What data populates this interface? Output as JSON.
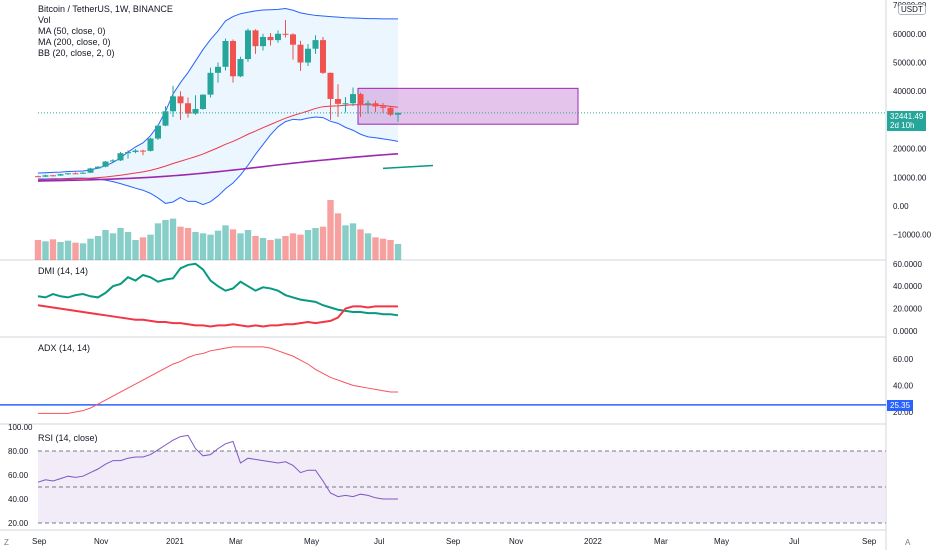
{
  "header": {
    "title": "Bitcoin / TetherUS, 1W, BINANCE",
    "indicators": [
      "Vol",
      "MA (50, close, 0)",
      "MA (200, close, 0)",
      "BB (20, close, 2, 0)"
    ],
    "currency": "USDT"
  },
  "panes": {
    "dmi_label": "DMI (14, 14)",
    "adx_label": "ADX (14, 14)",
    "rsi_label": "RSI (14, close)"
  },
  "price_axis": {
    "labels": [
      "70000.00",
      "60000.00",
      "50000.00",
      "40000.00",
      "30000.00",
      "20000.00",
      "10000.00",
      "0.00",
      "−10000.00"
    ],
    "last_price": "32441.49",
    "countdown": "2d 10h"
  },
  "dmi_axis": {
    "labels": [
      "60.0000",
      "40.0000",
      "20.0000",
      "0.0000"
    ]
  },
  "adx_axis": {
    "labels": [
      "60.00",
      "40.00",
      "20.00"
    ],
    "current": "25.35"
  },
  "rsi_axis": {
    "labels": [
      "100.00",
      "80.00",
      "60.00",
      "40.00",
      "20.00"
    ]
  },
  "time_axis": {
    "labels": [
      "Sep",
      "Nov",
      "2021",
      "Mar",
      "May",
      "Jul",
      "Sep",
      "Nov",
      "2022",
      "Mar",
      "May",
      "Jul",
      "Sep"
    ]
  },
  "corner": {
    "timezone_btn": "Z",
    "auto_btn": "A"
  },
  "colors": {
    "up": "#26a69a",
    "down": "#ef5350",
    "ma50": "#f23645",
    "ma200": "#9c27b0",
    "bb_line": "#2962ff",
    "bb_fill": "#e3f2fd",
    "adx_line": "#f7525f",
    "rsi_line": "#7e57c2",
    "rsi_band": "#ede7f6",
    "box_fill": "#ce93d8",
    "box_border": "#9c27b0",
    "last_price": "#26a69a",
    "adx_level": "#2962ff"
  },
  "chart_data": {
    "type": "candlestick",
    "title": "Bitcoin / TetherUS, 1W, BINANCE",
    "y_range": [
      -10000,
      70000
    ],
    "candles": [
      {
        "o": 10400,
        "h": 10600,
        "l": 10000,
        "c": 10200
      },
      {
        "o": 10200,
        "h": 10900,
        "l": 10100,
        "c": 10700
      },
      {
        "o": 10700,
        "h": 10800,
        "l": 10300,
        "c": 10600
      },
      {
        "o": 10600,
        "h": 11200,
        "l": 10500,
        "c": 11100
      },
      {
        "o": 11100,
        "h": 11500,
        "l": 10900,
        "c": 11400
      },
      {
        "o": 11400,
        "h": 11700,
        "l": 11200,
        "c": 11300
      },
      {
        "o": 11300,
        "h": 11800,
        "l": 11200,
        "c": 11600
      },
      {
        "o": 11600,
        "h": 13300,
        "l": 11500,
        "c": 13100
      },
      {
        "o": 13100,
        "h": 13900,
        "l": 12900,
        "c": 13700
      },
      {
        "o": 13700,
        "h": 15700,
        "l": 13500,
        "c": 15500
      },
      {
        "o": 15500,
        "h": 16300,
        "l": 15200,
        "c": 15900
      },
      {
        "o": 15900,
        "h": 18800,
        "l": 15700,
        "c": 18400
      },
      {
        "o": 18400,
        "h": 19400,
        "l": 16500,
        "c": 18800
      },
      {
        "o": 18800,
        "h": 19800,
        "l": 18400,
        "c": 19300
      },
      {
        "o": 19300,
        "h": 19600,
        "l": 17700,
        "c": 19200
      },
      {
        "o": 19200,
        "h": 23800,
        "l": 19000,
        "c": 23500
      },
      {
        "o": 23500,
        "h": 28400,
        "l": 23000,
        "c": 28000
      },
      {
        "o": 28000,
        "h": 34800,
        "l": 27800,
        "c": 33000
      },
      {
        "o": 33000,
        "h": 41900,
        "l": 31000,
        "c": 38200
      },
      {
        "o": 38200,
        "h": 40000,
        "l": 30000,
        "c": 35800
      },
      {
        "o": 35800,
        "h": 37800,
        "l": 30800,
        "c": 32200
      },
      {
        "o": 32200,
        "h": 38600,
        "l": 31800,
        "c": 33800
      },
      {
        "o": 33800,
        "h": 38900,
        "l": 33500,
        "c": 38800
      },
      {
        "o": 38800,
        "h": 48200,
        "l": 37800,
        "c": 46400
      },
      {
        "o": 46400,
        "h": 50000,
        "l": 43000,
        "c": 48500
      },
      {
        "o": 48500,
        "h": 58300,
        "l": 47200,
        "c": 57500
      },
      {
        "o": 57500,
        "h": 58000,
        "l": 43000,
        "c": 45200
      },
      {
        "o": 45200,
        "h": 52000,
        "l": 44900,
        "c": 51200
      },
      {
        "o": 51200,
        "h": 61800,
        "l": 50200,
        "c": 61200
      },
      {
        "o": 61200,
        "h": 61600,
        "l": 53000,
        "c": 55700
      },
      {
        "o": 55700,
        "h": 60000,
        "l": 54200,
        "c": 58900
      },
      {
        "o": 58900,
        "h": 60300,
        "l": 55900,
        "c": 57800
      },
      {
        "o": 57800,
        "h": 61200,
        "l": 56900,
        "c": 60000
      },
      {
        "o": 60000,
        "h": 64800,
        "l": 58700,
        "c": 59800
      },
      {
        "o": 59800,
        "h": 60200,
        "l": 51000,
        "c": 56200
      },
      {
        "o": 56200,
        "h": 57600,
        "l": 47100,
        "c": 50000
      },
      {
        "o": 50000,
        "h": 56400,
        "l": 48800,
        "c": 54800
      },
      {
        "o": 54800,
        "h": 59500,
        "l": 53000,
        "c": 57800
      },
      {
        "o": 57800,
        "h": 58900,
        "l": 46000,
        "c": 46400
      },
      {
        "o": 46400,
        "h": 46500,
        "l": 30000,
        "c": 37300
      },
      {
        "o": 37300,
        "h": 42400,
        "l": 31000,
        "c": 35600
      },
      {
        "o": 35600,
        "h": 38000,
        "l": 32600,
        "c": 35800
      },
      {
        "o": 35800,
        "h": 41300,
        "l": 34800,
        "c": 39000
      },
      {
        "o": 39000,
        "h": 39500,
        "l": 31000,
        "c": 35500
      },
      {
        "o": 35500,
        "h": 36700,
        "l": 32200,
        "c": 35800
      },
      {
        "o": 35800,
        "h": 36700,
        "l": 32700,
        "c": 34700
      },
      {
        "o": 34700,
        "h": 35900,
        "l": 32400,
        "c": 34200
      },
      {
        "o": 34200,
        "h": 34600,
        "l": 31300,
        "c": 31800
      },
      {
        "o": 31800,
        "h": 32600,
        "l": 29300,
        "c": 32441
      }
    ],
    "volume": [
      30,
      28,
      31,
      27,
      29,
      26,
      25,
      32,
      36,
      45,
      40,
      48,
      42,
      30,
      34,
      38,
      55,
      60,
      62,
      50,
      48,
      42,
      40,
      38,
      44,
      52,
      46,
      40,
      45,
      36,
      33,
      30,
      32,
      36,
      40,
      38,
      45,
      48,
      50,
      90,
      70,
      52,
      55,
      46,
      40,
      34,
      32,
      30,
      24
    ],
    "ma50": [
      9000,
      9100,
      9200,
      9300,
      9400,
      9500,
      9600,
      9700,
      9900,
      10100,
      10400,
      10700,
      11100,
      11500,
      11900,
      12400,
      13100,
      13900,
      14800,
      15600,
      16400,
      17200,
      18100,
      19200,
      20300,
      21500,
      22500,
      23700,
      25000,
      26100,
      27300,
      28400,
      29500,
      30600,
      31500,
      32300,
      33100,
      34000,
      34600,
      34800,
      34900,
      35100,
      35300,
      35300,
      35300,
      35200,
      35000,
      34700,
      34400
    ],
    "ma200": [
      8700,
      8760,
      8820,
      8880,
      8940,
      9000,
      9060,
      9140,
      9220,
      9310,
      9400,
      9500,
      9610,
      9730,
      9860,
      10000,
      10160,
      10340,
      10540,
      10750,
      10960,
      11190,
      11430,
      11690,
      11960,
      12240,
      12510,
      12800,
      13100,
      13400,
      13710,
      14020,
      14330,
      14630,
      14920,
      15200,
      15470,
      15730,
      15990,
      16240,
      16480,
      16720,
      16960,
      17180,
      17400,
      17610,
      17810,
      18000,
      18200
    ],
    "bb_upper": [
      11500,
      11600,
      11700,
      11800,
      12000,
      12100,
      12200,
      12600,
      13200,
      14000,
      15200,
      16800,
      18800,
      20600,
      22000,
      24500,
      28000,
      33000,
      39000,
      43000,
      46500,
      50500,
      54500,
      58000,
      61000,
      64500,
      66000,
      67000,
      67500,
      68000,
      68300,
      68400,
      68500,
      68800,
      68200,
      67300,
      66800,
      66400,
      66200,
      66000,
      65800,
      65600,
      65500,
      65400,
      65300,
      65300,
      65200,
      65200,
      65200
    ],
    "bb_lower": [
      9400,
      9400,
      9500,
      9500,
      9600,
      9700,
      9700,
      9600,
      9400,
      9000,
      8500,
      7800,
      7000,
      6200,
      5500,
      4400,
      2800,
      900,
      1400,
      3000,
      1600,
      1600,
      500,
      1500,
      3500,
      6000,
      8000,
      10800,
      14200,
      18000,
      21400,
      24800,
      27600,
      29400,
      30200,
      30000,
      30600,
      31000,
      30800,
      29500,
      28800,
      27400,
      26400,
      25000,
      24100,
      23800,
      23400,
      23000,
      22500
    ],
    "annotations": [
      {
        "type": "rectangle",
        "x_from_week": 28,
        "x_to_week": 48,
        "y_from": 28500,
        "y_to": 41000
      },
      {
        "type": "trendline",
        "from_week": 48,
        "to_week": 57,
        "from": 34200,
        "to": 35200
      },
      {
        "type": "segment",
        "from_week": 52,
        "to_week": 58,
        "from": 13100,
        "to": 14100
      }
    ],
    "dmi": {
      "plus_di": [
        31,
        30,
        33,
        31,
        30,
        32,
        33,
        31,
        30,
        34,
        40,
        42,
        48,
        45,
        50,
        48,
        44,
        46,
        47,
        56,
        59,
        60,
        55,
        45,
        40,
        36,
        38,
        44,
        40,
        36,
        39,
        38,
        36,
        32,
        30,
        28,
        27,
        26,
        23,
        21,
        19,
        18,
        17,
        17,
        16,
        16,
        15,
        15,
        14
      ],
      "minus_di": [
        23,
        22,
        21,
        20,
        19,
        18,
        17,
        16,
        15,
        14,
        13,
        12,
        11,
        10,
        10,
        9,
        8,
        8,
        7,
        7,
        6,
        5,
        5,
        4,
        5,
        5,
        6,
        5,
        4,
        5,
        4,
        5,
        5,
        6,
        6,
        7,
        8,
        7,
        8,
        9,
        12,
        20,
        22,
        22,
        21,
        22,
        22,
        22,
        22
      ]
    },
    "adx": {
      "values": [
        19,
        19,
        19,
        19,
        19,
        20,
        21,
        23,
        26,
        29,
        32,
        35,
        38,
        41,
        44,
        47,
        50,
        53,
        56,
        58,
        61,
        63,
        64,
        66,
        67,
        68,
        69,
        69,
        69,
        69,
        69,
        68,
        66,
        64,
        62,
        59,
        56,
        52,
        49,
        46,
        44,
        42,
        40,
        39,
        38,
        37,
        36,
        35,
        35
      ],
      "level": 25.35
    },
    "rsi": {
      "values": [
        54,
        56,
        55,
        57,
        59,
        58,
        59,
        62,
        65,
        69,
        72,
        72,
        74,
        75,
        75,
        77,
        81,
        85,
        89,
        92,
        93,
        82,
        76,
        77,
        82,
        86,
        88,
        70,
        74,
        73,
        72,
        71,
        70,
        71,
        68,
        62,
        64,
        64,
        55,
        45,
        42,
        43,
        42,
        44,
        43,
        41,
        40,
        40,
        40
      ],
      "upper": 80,
      "middle": 50,
      "lower": 20
    }
  }
}
